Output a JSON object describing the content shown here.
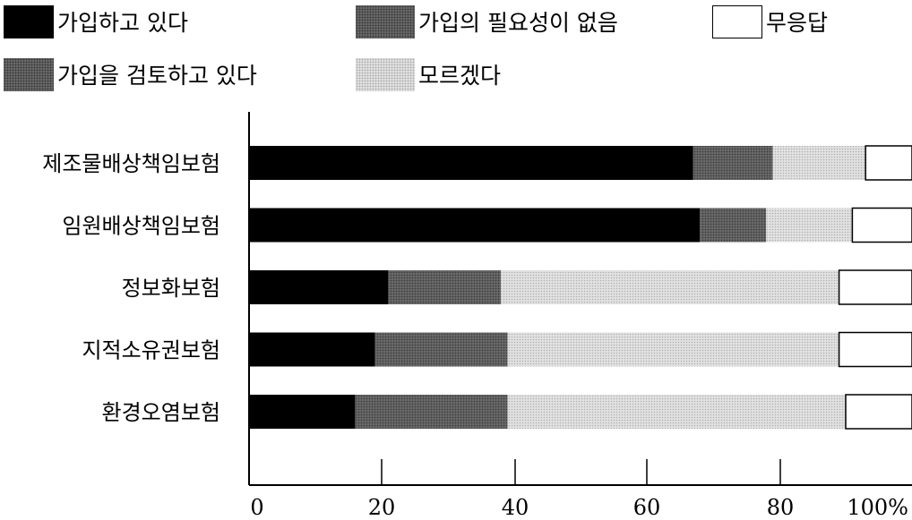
{
  "legend": [
    {
      "key": "joined",
      "label": "가입하고 있다",
      "color": "#000000"
    },
    {
      "key": "reviewing",
      "label": "가입을 검토하고 있다",
      "color": "#6a6a6a"
    },
    {
      "key": "not_needed",
      "label": "가입의 필요성이 없음",
      "color": "#585858"
    },
    {
      "key": "dont_know",
      "label": "모르겠다",
      "color": "#e2e2e2"
    },
    {
      "key": "no_answer",
      "label": "무응답",
      "color": "#ffffff"
    }
  ],
  "chart_data": {
    "type": "bar",
    "orientation": "horizontal",
    "stacked": true,
    "categories": [
      "제조물배상책임보험",
      "임원배상책임보험",
      "정보화보험",
      "지적소유권보험",
      "환경오염보험"
    ],
    "series": [
      {
        "name": "가입하고 있다",
        "values": [
          67,
          68,
          21,
          19,
          16
        ]
      },
      {
        "name": "가입을 검토하고 있다",
        "values": [
          0,
          0,
          0,
          0,
          0
        ]
      },
      {
        "name": "가입의 필요성이 없음",
        "values": [
          12,
          10,
          17,
          20,
          23
        ]
      },
      {
        "name": "모르겠다",
        "values": [
          14,
          13,
          51,
          50,
          51
        ]
      },
      {
        "name": "무응답",
        "values": [
          7,
          9,
          11,
          11,
          10
        ]
      }
    ],
    "x_ticks": [
      "0",
      "20",
      "40",
      "60",
      "80",
      "100%"
    ],
    "xlim": [
      0,
      100
    ],
    "grid": false,
    "legend_position": "top"
  }
}
